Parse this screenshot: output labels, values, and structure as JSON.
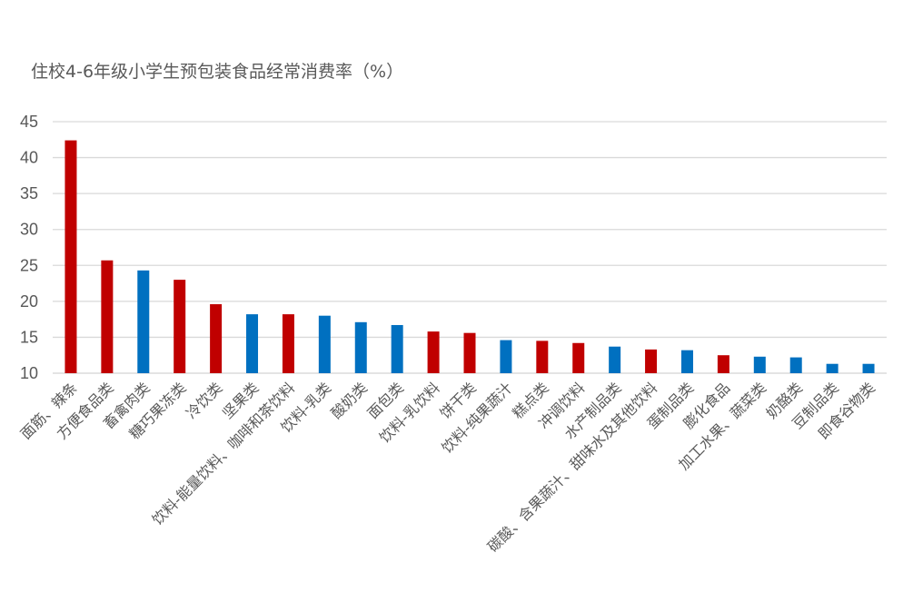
{
  "chart_data": {
    "type": "bar",
    "title": "住校4-6年级小学生预包装食品经常消费率（%）",
    "xlabel": "",
    "ylabel": "",
    "ylim": [
      10,
      45
    ],
    "yticks": [
      10,
      15,
      20,
      25,
      30,
      35,
      40,
      45
    ],
    "grid": true,
    "colors": {
      "red": "#c00000",
      "blue": "#0070c0"
    },
    "categories": [
      "面筋、辣条",
      "方便食品类",
      "畜禽肉类",
      "糖巧果冻类",
      "冷饮类",
      "坚果类",
      "饮料-能量饮料、咖啡和茶饮料",
      "饮料-乳类",
      "酸奶类",
      "面包类",
      "饮料-乳饮料",
      "饼干类",
      "饮料-纯果蔬汁",
      "糕点类",
      "冲调饮料",
      "水产制品类",
      "碳酸、含果蔬汁、甜味水及其他饮料",
      "蛋制品类",
      "膨化食品",
      "加工水果、蔬菜类",
      "奶酪类",
      "豆制品类",
      "即食谷物类"
    ],
    "values": [
      42.4,
      25.7,
      24.3,
      23.0,
      19.6,
      18.2,
      18.2,
      18.0,
      17.1,
      16.7,
      15.8,
      15.6,
      14.6,
      14.5,
      14.2,
      13.7,
      13.3,
      13.2,
      12.5,
      12.3,
      12.2,
      11.3,
      11.3
    ],
    "bar_colors": [
      "red",
      "red",
      "blue",
      "red",
      "red",
      "blue",
      "red",
      "blue",
      "blue",
      "blue",
      "red",
      "red",
      "blue",
      "red",
      "red",
      "blue",
      "red",
      "blue",
      "red",
      "blue",
      "blue",
      "blue",
      "blue"
    ]
  }
}
